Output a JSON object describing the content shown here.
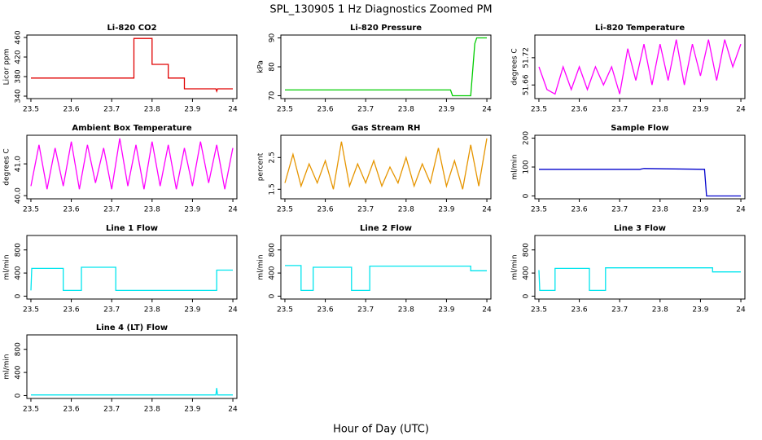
{
  "title": "SPL_130905  1 Hz Diagnostics Zoomed PM",
  "x_label": "Hour of Day (UTC)",
  "chart_data": [
    {
      "type": "line",
      "title": "Li-820 CO2",
      "y_label": "Licor ppm",
      "x": [
        23.5,
        23.755,
        23.755,
        23.8,
        23.8,
        23.84,
        23.84,
        23.88,
        23.88,
        23.958,
        23.96,
        23.962,
        24.0
      ],
      "series": [
        {
          "color": "#e00000",
          "values": [
            377,
            377,
            458,
            458,
            405,
            405,
            377,
            377,
            355,
            355,
            350,
            355,
            355
          ]
        }
      ],
      "xlim": [
        23.49,
        24.01
      ],
      "ylim": [
        335,
        465
      ],
      "xticks": [
        23.5,
        23.6,
        23.7,
        23.8,
        23.9,
        24.0
      ],
      "yticks": [
        340,
        380,
        420,
        460
      ]
    },
    {
      "type": "line",
      "title": "Li-820 Pressure",
      "y_label": "kPa",
      "x": [
        23.5,
        23.91,
        23.915,
        23.96,
        23.97,
        23.975,
        24.0
      ],
      "series": [
        {
          "color": "#00cc00",
          "values": [
            72,
            72,
            70,
            70,
            88,
            90,
            90
          ]
        }
      ],
      "xlim": [
        23.49,
        24.01
      ],
      "ylim": [
        69,
        91
      ],
      "xticks": [
        23.5,
        23.6,
        23.7,
        23.8,
        23.9,
        24.0
      ],
      "yticks": [
        70,
        80,
        90
      ]
    },
    {
      "type": "line",
      "title": "Li-820 Temperature",
      "y_label": "degrees C",
      "x": [
        23.5,
        23.52,
        23.54,
        23.56,
        23.58,
        23.6,
        23.62,
        23.64,
        23.66,
        23.68,
        23.7,
        23.72,
        23.74,
        23.76,
        23.78,
        23.8,
        23.82,
        23.84,
        23.86,
        23.88,
        23.9,
        23.92,
        23.94,
        23.96,
        23.98,
        24.0
      ],
      "series": [
        {
          "color": "#ff00ff",
          "values": [
            51.7,
            51.65,
            51.64,
            51.7,
            51.65,
            51.7,
            51.65,
            51.7,
            51.66,
            51.7,
            51.64,
            51.74,
            51.67,
            51.75,
            51.66,
            51.75,
            51.67,
            51.76,
            51.66,
            51.75,
            51.68,
            51.76,
            51.67,
            51.76,
            51.7,
            51.75
          ]
        }
      ],
      "xlim": [
        23.49,
        24.01
      ],
      "ylim": [
        51.63,
        51.77
      ],
      "xticks": [
        23.5,
        23.6,
        23.7,
        23.8,
        23.9,
        24.0
      ],
      "yticks": [
        51.66,
        51.72
      ]
    },
    {
      "type": "line",
      "title": "Ambient Box Temperature",
      "y_label": "degrees C",
      "x": [
        23.5,
        23.52,
        23.54,
        23.56,
        23.58,
        23.6,
        23.62,
        23.64,
        23.66,
        23.68,
        23.7,
        23.72,
        23.74,
        23.76,
        23.78,
        23.8,
        23.82,
        23.84,
        23.86,
        23.88,
        23.9,
        23.92,
        23.94,
        23.96,
        23.98,
        24.0
      ],
      "series": [
        {
          "color": "#ff00ff",
          "values": [
            40.3,
            41.6,
            40.2,
            41.5,
            40.3,
            41.7,
            40.2,
            41.6,
            40.4,
            41.5,
            40.2,
            41.8,
            40.3,
            41.6,
            40.2,
            41.7,
            40.3,
            41.6,
            40.2,
            41.5,
            40.3,
            41.7,
            40.4,
            41.6,
            40.2,
            41.5
          ]
        }
      ],
      "xlim": [
        23.49,
        24.01
      ],
      "ylim": [
        39.9,
        41.9
      ],
      "xticks": [
        23.5,
        23.6,
        23.7,
        23.8,
        23.9,
        24.0
      ],
      "yticks": [
        {
          "value": 40,
          "label": "40.0"
        },
        {
          "value": 41,
          "label": "41.0"
        }
      ]
    },
    {
      "type": "line",
      "title": "Gas Stream RH",
      "y_label": "percent",
      "x": [
        23.5,
        23.52,
        23.54,
        23.56,
        23.58,
        23.6,
        23.62,
        23.64,
        23.66,
        23.68,
        23.7,
        23.72,
        23.74,
        23.76,
        23.78,
        23.8,
        23.82,
        23.84,
        23.86,
        23.88,
        23.9,
        23.92,
        23.94,
        23.96,
        23.98,
        24.0
      ],
      "series": [
        {
          "color": "#e69500",
          "values": [
            1.7,
            2.6,
            1.6,
            2.3,
            1.7,
            2.4,
            1.5,
            3.0,
            1.6,
            2.3,
            1.7,
            2.4,
            1.6,
            2.2,
            1.7,
            2.5,
            1.6,
            2.3,
            1.7,
            2.8,
            1.6,
            2.4,
            1.5,
            2.9,
            1.6,
            3.1
          ]
        }
      ],
      "xlim": [
        23.49,
        24.01
      ],
      "ylim": [
        1.2,
        3.2
      ],
      "xticks": [
        23.5,
        23.6,
        23.7,
        23.8,
        23.9,
        24.0
      ],
      "yticks": [
        1.5,
        2.5
      ]
    },
    {
      "type": "line",
      "title": "Sample Flow",
      "y_label": "ml/min",
      "x": [
        23.5,
        23.75,
        23.76,
        23.91,
        23.915,
        24.0
      ],
      "series": [
        {
          "color": "#0000cc",
          "values": [
            92,
            92,
            95,
            92,
            0,
            0
          ]
        }
      ],
      "xlim": [
        23.49,
        24.01
      ],
      "ylim": [
        -10,
        210
      ],
      "xticks": [
        23.5,
        23.6,
        23.7,
        23.8,
        23.9,
        24.0
      ],
      "yticks": [
        0,
        100,
        200
      ]
    },
    {
      "type": "line",
      "title": "Line 1 Flow",
      "y_label": "ml/min",
      "x": [
        23.5,
        23.502,
        23.58,
        23.58,
        23.625,
        23.625,
        23.71,
        23.71,
        23.96,
        23.96,
        24.0
      ],
      "series": [
        {
          "color": "#00e5ee",
          "values": [
            100,
            480,
            480,
            100,
            100,
            500,
            500,
            100,
            100,
            450,
            450
          ]
        }
      ],
      "xlim": [
        23.49,
        24.01
      ],
      "ylim": [
        -50,
        1050
      ],
      "xticks": [
        23.5,
        23.6,
        23.7,
        23.8,
        23.9,
        24.0
      ],
      "yticks": [
        0,
        400,
        800
      ]
    },
    {
      "type": "line",
      "title": "Line 2 Flow",
      "y_label": "ml/min",
      "x": [
        23.5,
        23.54,
        23.54,
        23.57,
        23.57,
        23.665,
        23.665,
        23.71,
        23.71,
        23.96,
        23.96,
        24.0
      ],
      "series": [
        {
          "color": "#00e5ee",
          "values": [
            530,
            530,
            100,
            100,
            500,
            500,
            100,
            100,
            520,
            520,
            440,
            440
          ]
        }
      ],
      "xlim": [
        23.49,
        24.01
      ],
      "ylim": [
        -50,
        1050
      ],
      "xticks": [
        23.5,
        23.6,
        23.7,
        23.8,
        23.9,
        24.0
      ],
      "yticks": [
        0,
        400,
        800
      ]
    },
    {
      "type": "line",
      "title": "Line 3 Flow",
      "y_label": "ml/min",
      "x": [
        23.5,
        23.502,
        23.54,
        23.54,
        23.625,
        23.625,
        23.665,
        23.665,
        23.93,
        23.93,
        24.0
      ],
      "series": [
        {
          "color": "#00e5ee",
          "values": [
            450,
            100,
            100,
            480,
            480,
            100,
            100,
            490,
            490,
            420,
            420
          ]
        }
      ],
      "xlim": [
        23.49,
        24.01
      ],
      "ylim": [
        -50,
        1050
      ],
      "xticks": [
        23.5,
        23.6,
        23.7,
        23.8,
        23.9,
        24.0
      ],
      "yticks": [
        0,
        400,
        800
      ]
    },
    {
      "type": "line",
      "title": "Line 4 (LT) Flow",
      "y_label": "ml/min",
      "x": [
        23.5,
        23.958,
        23.96,
        23.962,
        24.0
      ],
      "series": [
        {
          "color": "#00e5ee",
          "values": [
            10,
            10,
            130,
            10,
            10
          ]
        }
      ],
      "xlim": [
        23.49,
        24.01
      ],
      "ylim": [
        -50,
        1050
      ],
      "xticks": [
        23.5,
        23.6,
        23.7,
        23.8,
        23.9,
        24.0
      ],
      "yticks": [
        0,
        400,
        800
      ]
    }
  ]
}
